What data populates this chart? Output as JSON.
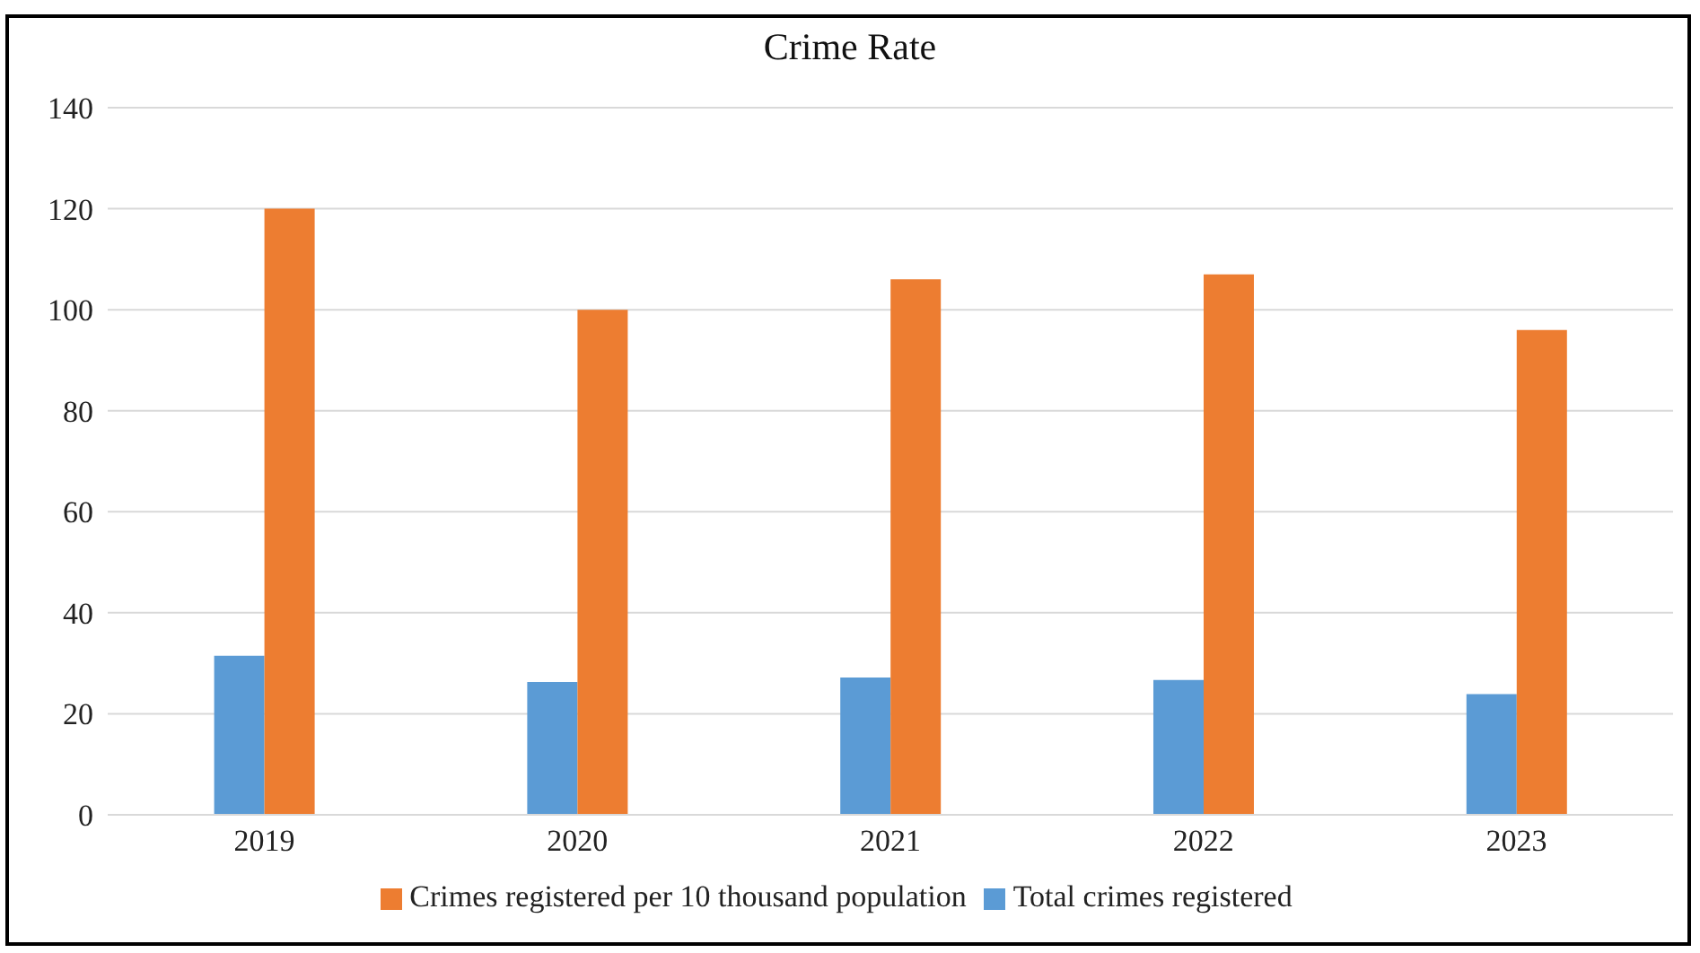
{
  "chart_data": {
    "type": "bar",
    "title": "Crime Rate",
    "categories": [
      "2019",
      "2020",
      "2021",
      "2022",
      "2023"
    ],
    "series": [
      {
        "name": "Total crimes registered",
        "color": "#5b9bd5",
        "values": [
          31.5,
          26.3,
          27.2,
          26.7,
          23.9
        ]
      },
      {
        "name": "Crimes registered per 10 thousand population",
        "color": "#ed7d31",
        "values": [
          120,
          100,
          106,
          107,
          96
        ]
      }
    ],
    "ylim": [
      0,
      140
    ],
    "yticks": [
      0,
      20,
      40,
      60,
      80,
      100,
      120,
      140
    ],
    "grid": "y",
    "legend": "bottom"
  }
}
